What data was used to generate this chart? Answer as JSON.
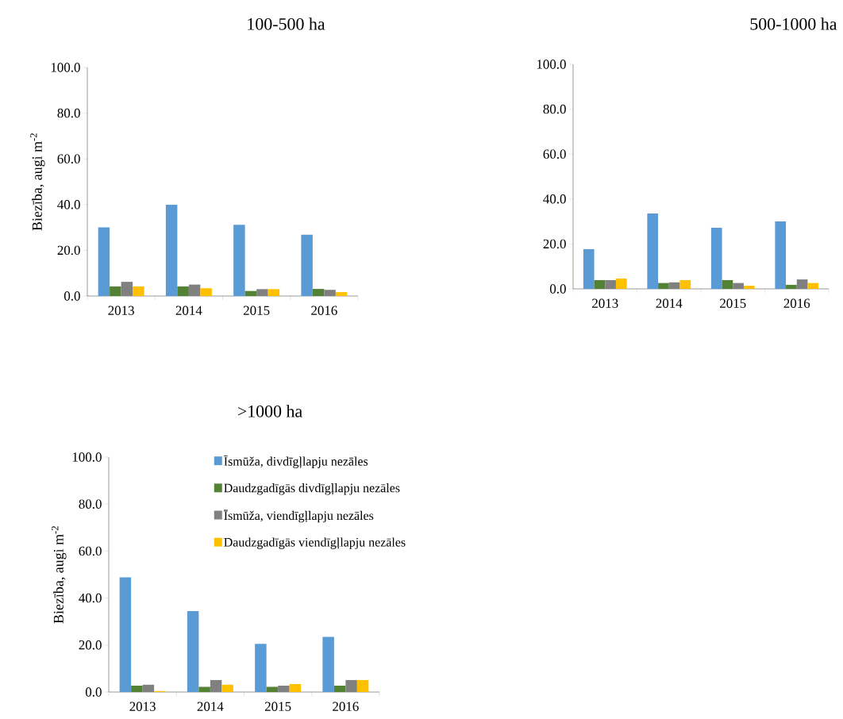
{
  "chart_data": [
    {
      "type": "bar",
      "title": "100-500 ha",
      "ylabel": "Biezība, augi m$^{-2}$",
      "categories": [
        "2013",
        "2014",
        "2015",
        "2016"
      ],
      "series": [
        {
          "color": "#5b9bd5",
          "values": [
            30.0,
            39.9,
            31.2,
            26.8
          ]
        },
        {
          "color": "#548235",
          "values": [
            4.2,
            4.2,
            2.2,
            3.1
          ]
        },
        {
          "color": "#808080",
          "values": [
            6.2,
            5.0,
            3.0,
            2.7
          ]
        },
        {
          "color": "#ffc000",
          "values": [
            4.2,
            3.4,
            3.0,
            1.7
          ]
        }
      ],
      "ylim": [
        0,
        100
      ],
      "yticks": [
        {
          "value": 0,
          "label": "0.0"
        },
        {
          "value": 20,
          "label": "20.0"
        },
        {
          "value": 40,
          "label": "40.0"
        },
        {
          "value": 60,
          "label": "60.0"
        },
        {
          "value": 80,
          "label": "80.0"
        },
        {
          "value": 100,
          "label": "100.0"
        }
      ],
      "grid": false
    },
    {
      "type": "bar",
      "title": "500-1000 ha",
      "categories": [
        "2013",
        "2014",
        "2015",
        "2016"
      ],
      "series": [
        {
          "color": "#5b9bd5",
          "values": [
            17.7,
            33.6,
            27.2,
            30.0
          ]
        },
        {
          "color": "#548235",
          "values": [
            3.9,
            2.6,
            3.9,
            1.8
          ]
        },
        {
          "color": "#808080",
          "values": [
            3.9,
            2.9,
            2.6,
            4.2
          ]
        },
        {
          "color": "#ffc000",
          "values": [
            4.6,
            3.9,
            1.4,
            2.6
          ]
        }
      ],
      "ylim": [
        0,
        100
      ],
      "yticks": [
        {
          "value": 0,
          "label": "0.0"
        },
        {
          "value": 20,
          "label": "20.0"
        },
        {
          "value": 40,
          "label": "40.0"
        },
        {
          "value": 60,
          "label": "60.0"
        },
        {
          "value": 80,
          "label": "80.0"
        },
        {
          "value": 100,
          "label": "100.0"
        }
      ],
      "grid": false
    },
    {
      "type": "bar",
      "title": ">1000 ha",
      "ylabel": "Biezība, augi m$^{-2}$",
      "categories": [
        "2013",
        "2014",
        "2015",
        "2016"
      ],
      "series": [
        {
          "name": "Īsmūža, divdīgļlapju nezāles",
          "color": "#5b9bd5",
          "values": [
            48.8,
            34.5,
            20.5,
            23.5
          ]
        },
        {
          "name": "Daudzgadīgās divdīgļlapju nezāles",
          "color": "#548235",
          "values": [
            2.7,
            2.2,
            2.2,
            2.7
          ]
        },
        {
          "name": "Īsmūža, viendīgļlapju nezāles",
          "color": "#808080",
          "values": [
            3.1,
            5.1,
            2.7,
            5.1
          ]
        },
        {
          "name": "Daudzgadīgās viendīgļlapju nezāles",
          "color": "#ffc000",
          "values": [
            0.4,
            3.1,
            3.4,
            5.1
          ]
        }
      ],
      "ylim": [
        0,
        100
      ],
      "yticks": [
        {
          "value": 0,
          "label": "0.0"
        },
        {
          "value": 20,
          "label": "20.0"
        },
        {
          "value": 40,
          "label": "40.0"
        },
        {
          "value": 60,
          "label": "60.0"
        },
        {
          "value": 80,
          "label": "80.0"
        },
        {
          "value": 100,
          "label": "100.0"
        }
      ],
      "grid": false,
      "legend": "top right"
    }
  ]
}
